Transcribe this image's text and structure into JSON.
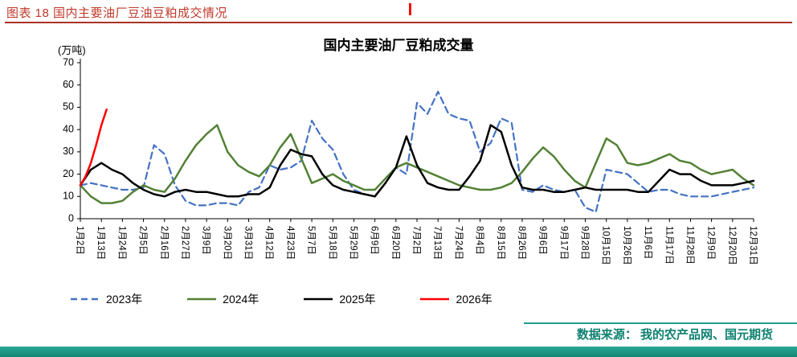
{
  "header": {
    "title": "图表 18 国内主要油厂豆油豆粕成交情况"
  },
  "footer": {
    "source": "数据来源： 我的农产品网、国元期货"
  },
  "theme": {
    "header_red": "#C0392B",
    "divider_red": "#A93226",
    "marker_red": "#FF0000",
    "footer_bar_teal": "#1F9E8E",
    "footer_text_teal": "#0E8170",
    "series_blue": "#4472C4",
    "series_green": "#538135",
    "series_black": "#000000",
    "series_red": "#FF0000"
  },
  "chart_data": {
    "type": "line",
    "title": "国内主要油厂豆粕成交量",
    "ylabel": "(万吨)",
    "xlabel": "",
    "ylim": [
      0,
      70
    ],
    "yticks": [
      0,
      10,
      20,
      30,
      40,
      50,
      60,
      70
    ],
    "grid": false,
    "legend_position": "bottom",
    "x_tick_labels": [
      "1月2日",
      "1月13日",
      "1月24日",
      "2月5日",
      "2月16日",
      "2月27日",
      "3月9日",
      "3月20日",
      "3月31日",
      "4月12日",
      "4月23日",
      "5月7日",
      "5月18日",
      "5月29日",
      "6月9日",
      "6月20日",
      "7月2日",
      "7月13日",
      "7月24日",
      "8月4日",
      "8月15日",
      "8月26日",
      "9月6日",
      "9月17日",
      "9月28日",
      "10月15日",
      "10月26日",
      "11月6日",
      "11月17日",
      "11月28日",
      "12月9日",
      "12月20日",
      "12月31日"
    ],
    "x_unit": "tick-index (0 = 1月2日, 32 = 12月31日)",
    "series": [
      {
        "name": "2023年",
        "color": "#4472C4",
        "style": "dashed",
        "x_start": 0,
        "x_step": 0.5,
        "values": [
          15,
          16,
          15,
          14,
          13,
          13,
          14,
          33,
          29,
          15,
          8,
          6,
          6,
          7,
          7,
          6,
          12,
          14,
          24,
          22,
          23,
          26,
          44,
          36,
          31,
          20,
          13,
          11,
          10,
          16,
          23,
          20,
          52,
          47,
          57,
          47,
          45,
          44,
          30,
          34,
          45,
          43,
          13,
          12,
          15,
          13,
          12,
          13,
          5,
          3,
          22,
          21,
          20,
          16,
          12,
          13,
          13,
          11,
          10,
          10,
          10,
          11,
          12,
          13,
          14
        ]
      },
      {
        "name": "2024年",
        "color": "#538135",
        "style": "solid",
        "x_start": 0,
        "x_step": 0.5,
        "values": [
          15,
          10,
          7,
          7,
          8,
          12,
          15,
          13,
          12,
          18,
          26,
          33,
          38,
          42,
          30,
          24,
          21,
          19,
          24,
          32,
          38,
          27,
          16,
          18,
          20,
          17,
          15,
          13,
          13,
          18,
          23,
          25,
          23,
          21,
          19,
          17,
          15,
          14,
          13,
          13,
          14,
          16,
          21,
          27,
          32,
          28,
          22,
          17,
          14,
          25,
          36,
          33,
          25,
          24,
          25,
          27,
          29,
          26,
          25,
          22,
          20,
          21,
          22,
          18,
          15
        ]
      },
      {
        "name": "2025年",
        "color": "#000000",
        "style": "solid",
        "x_start": 0,
        "x_step": 0.5,
        "values": [
          15,
          22,
          25,
          22,
          20,
          16,
          13,
          11,
          10,
          12,
          13,
          12,
          12,
          11,
          10,
          10,
          11,
          11,
          14,
          24,
          31,
          29,
          28,
          20,
          15,
          13,
          12,
          11,
          10,
          16,
          23,
          37,
          24,
          16,
          14,
          13,
          13,
          19,
          26,
          42,
          39,
          24,
          14,
          13,
          13,
          12,
          12,
          13,
          14,
          13,
          13,
          13,
          13,
          12,
          12,
          17,
          22,
          20,
          20,
          17,
          15,
          15,
          15,
          16,
          17
        ]
      },
      {
        "name": "2026年",
        "color": "#FF0000",
        "style": "solid",
        "x_start": 0,
        "x_step": 0.25,
        "values": [
          15,
          19,
          25,
          33,
          42,
          49
        ]
      }
    ]
  }
}
